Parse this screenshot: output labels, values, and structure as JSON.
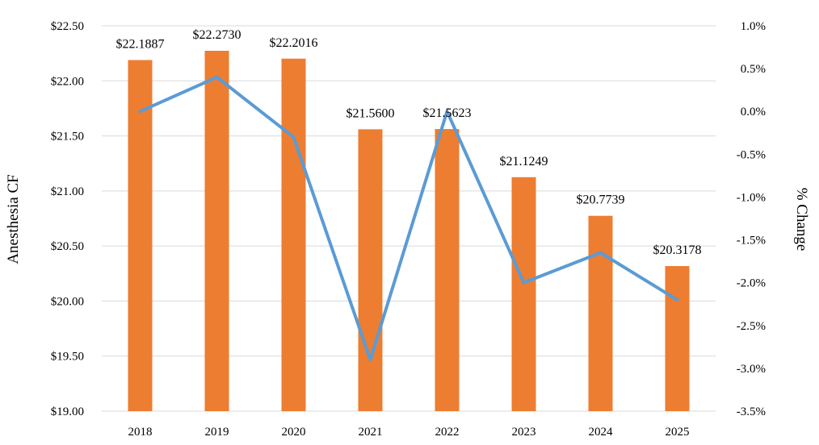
{
  "chart_data": {
    "type": "bar",
    "categories": [
      "2018",
      "2019",
      "2020",
      "2021",
      "2022",
      "2023",
      "2024",
      "2025"
    ],
    "bar_series": {
      "values": [
        22.1887,
        22.273,
        22.2016,
        21.56,
        21.5623,
        21.1249,
        20.7739,
        20.3178
      ],
      "labels": [
        "$22.1887",
        "$22.2730",
        "$22.2016",
        "$21.5600",
        "$21.5623",
        "$21.1249",
        "$20.7739",
        "$20.3178"
      ],
      "color": "#ED7D31"
    },
    "line_series": {
      "type": "line",
      "axis": "right",
      "values": [
        0.0,
        0.4,
        -0.3,
        -2.9,
        0.0,
        -2.0,
        -1.65,
        -2.2
      ],
      "color": "#5B9BD5"
    },
    "ylabel": "Anesthesia CF",
    "y2label": "% Change",
    "ylim": [
      19.0,
      22.5
    ],
    "y2lim": [
      -3.5,
      1.0
    ],
    "y_ticks": [
      "$19.00",
      "$19.50",
      "$20.00",
      "$20.50",
      "$21.00",
      "$21.50",
      "$22.00",
      "$22.50"
    ],
    "y2_ticks": [
      "-3.5%",
      "-3.0%",
      "-2.5%",
      "-2.0%",
      "-1.5%",
      "-1.0%",
      "-0.5%",
      "0.0%",
      "0.5%",
      "1.0%"
    ],
    "grid": true,
    "gridline_color": "#D9D9D9"
  }
}
